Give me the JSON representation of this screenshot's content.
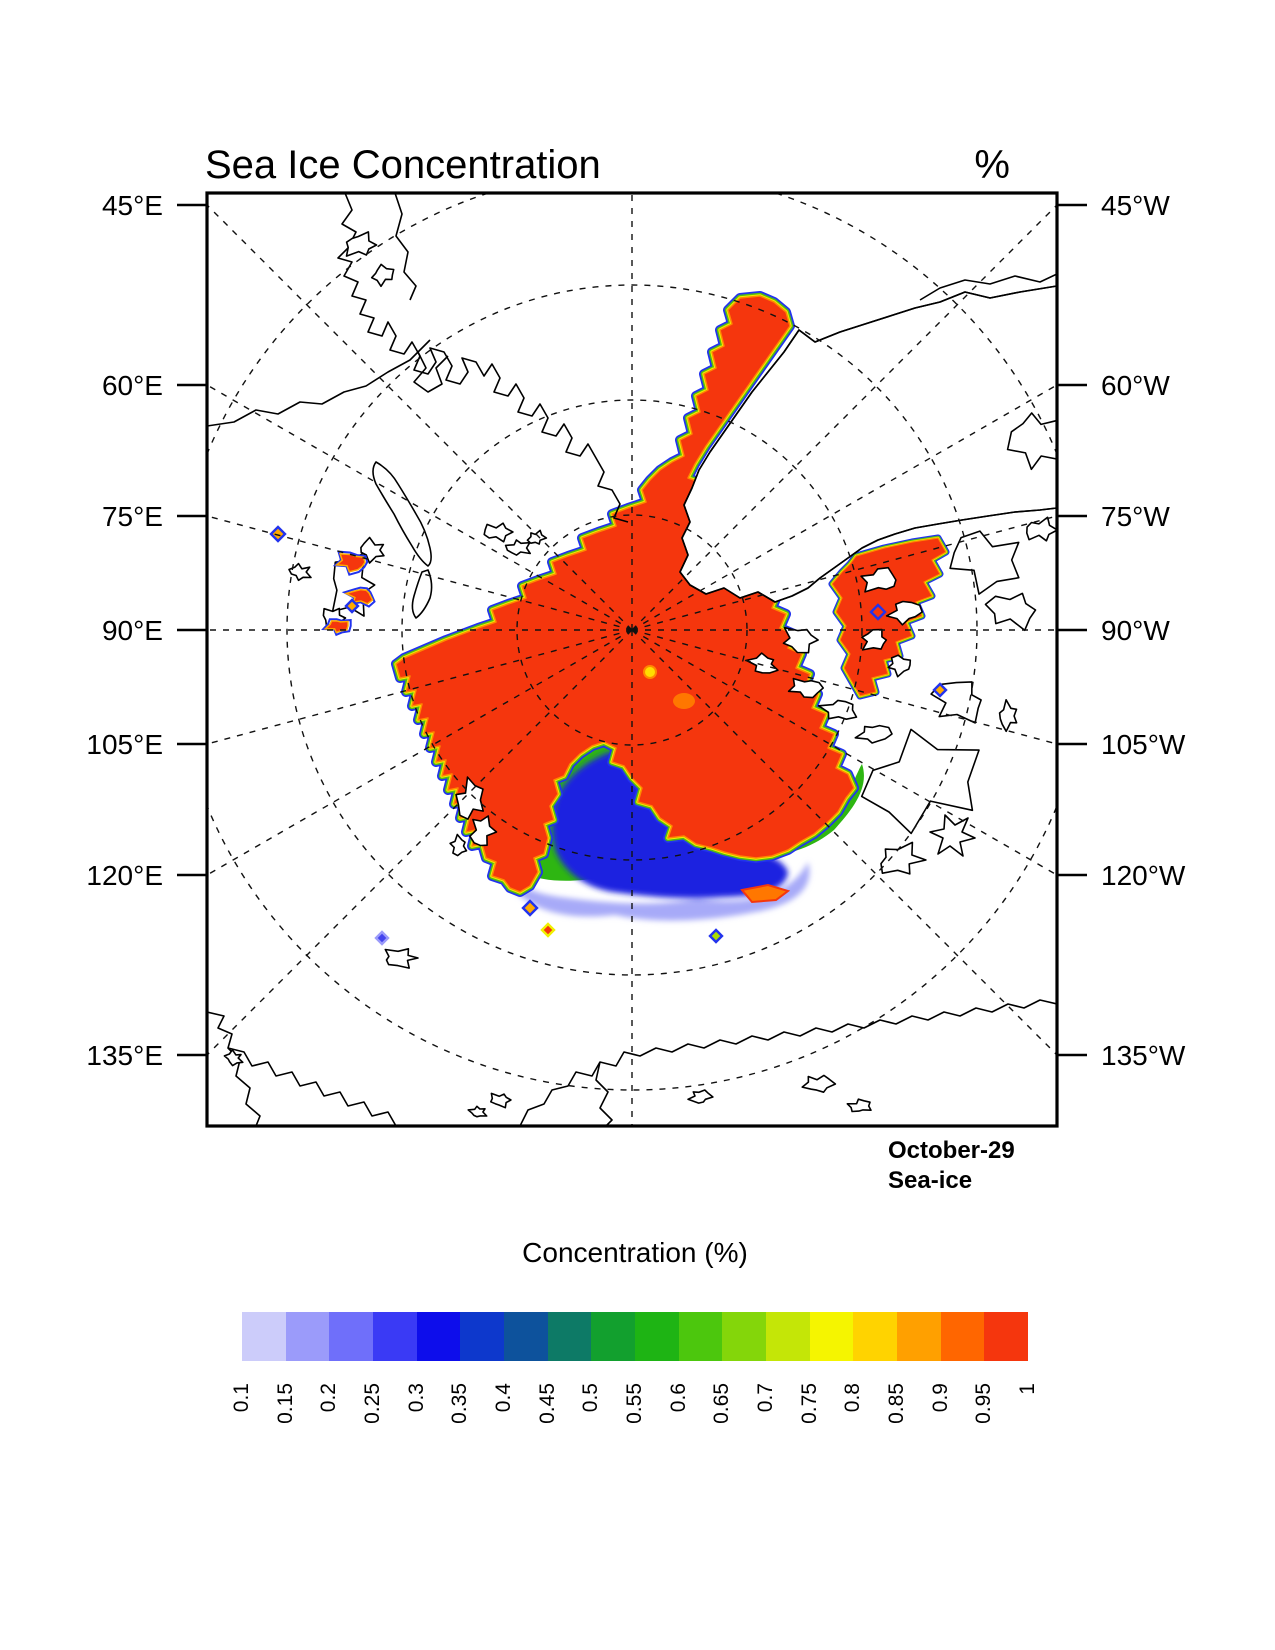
{
  "title": "Sea Ice Concentration",
  "units_symbol": "%",
  "left_axis_labels": [
    "45°E",
    "60°E",
    "75°E",
    "90°E",
    "105°E",
    "120°E",
    "135°E"
  ],
  "right_axis_labels": [
    "45°W",
    "60°W",
    "75°W",
    "90°W",
    "105°W",
    "120°W",
    "135°W"
  ],
  "annotation": {
    "line1": "October-29",
    "line2": "Sea-ice"
  },
  "colorbar": {
    "title": "Concentration (%)",
    "tick_labels": [
      "0.1",
      "0.15",
      "0.2",
      "0.25",
      "0.3",
      "0.35",
      "0.4",
      "0.45",
      "0.5",
      "0.55",
      "0.6",
      "0.65",
      "0.7",
      "0.75",
      "0.8",
      "0.85",
      "0.9",
      "0.95",
      "1"
    ],
    "colors": [
      "#ccccfa",
      "#9b9bfa",
      "#6f6ffa",
      "#3a3af5",
      "#0d0deb",
      "#0d38cc",
      "#0d529c",
      "#0d7a66",
      "#12a02e",
      "#1eb414",
      "#4cc70d",
      "#84d60a",
      "#c4e607",
      "#f5f500",
      "#ffd300",
      "#ffa000",
      "#ff6600",
      "#f5360d"
    ]
  },
  "chart_data": {
    "type": "heatmap",
    "subtype": "filled-contour-polar-map",
    "title": "Sea Ice Concentration",
    "units": "%",
    "date_label": "October-29",
    "variable_label": "Sea-ice",
    "projection": "north polar stereographic (0° meridian at top, 180° at bottom)",
    "left_meridian_ticks": [
      "45°E",
      "60°E",
      "75°E",
      "90°E",
      "105°E",
      "120°E",
      "135°E"
    ],
    "right_meridian_ticks": [
      "45°W",
      "60°W",
      "75°W",
      "90°W",
      "105°W",
      "120°W",
      "135°W"
    ],
    "legend_title": "Concentration (%)",
    "contour_levels": [
      0.1,
      0.15,
      0.2,
      0.25,
      0.3,
      0.35,
      0.4,
      0.45,
      0.5,
      0.55,
      0.6,
      0.65,
      0.7,
      0.75,
      0.8,
      0.85,
      0.9,
      0.95,
      1
    ],
    "palette": [
      "#ccccfa",
      "#9b9bfa",
      "#6f6ffa",
      "#3a3af5",
      "#0d0deb",
      "#0d38cc",
      "#0d529c",
      "#0d7a66",
      "#12a02e",
      "#1eb414",
      "#4cc70d",
      "#84d60a",
      "#c4e607",
      "#f5f500",
      "#ffd300",
      "#ffa000",
      "#ff6600",
      "#f5360d"
    ],
    "values_summary": {
      "central_arctic_pack": "concentration 0.95-1 (solid red) covering the central Arctic Ocean from the pole to the Siberian, Greenland and Canadian Archipelago coasts",
      "ice_edge_fringe": "narrow 0.1-0.9 rainbow fringe (blue outermost, then green, yellow, orange) around the entire pack edge",
      "marginal_ice_zone": "broad 0.1-0.7 gradient (light blue, blue, green) in the Chukchi/Beaufort sector at the bottom-centre bay of the pack",
      "open_water_and_land": "white (below 0.1 or land)",
      "scattered_spots": "small 0.1-0.9 patches near Svalbard, Wrangel Island and the Canadian Archipelago channels"
    },
    "grid": "dashed graticule: latitude circles and meridians every 15°",
    "legend_position": "horizontal labelbar below map"
  }
}
